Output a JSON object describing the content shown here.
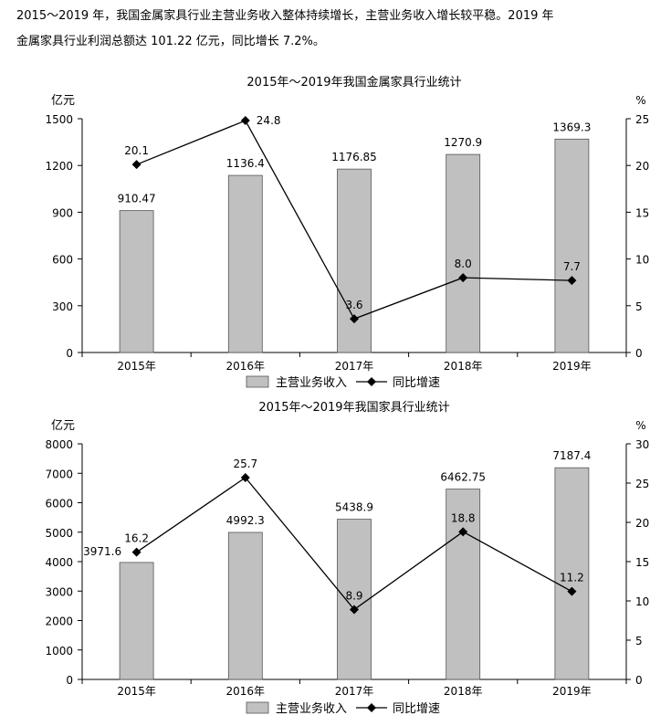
{
  "intro": {
    "line1": "2015～2019 年，我国金属家具行业主营业务收入整体持续增长，主营业务收入增长较平稳。2019 年",
    "line2": "金属家具行业利润总额达 101.22 亿元，同比增长 7.2%。"
  },
  "chart_data": [
    {
      "type": "bar",
      "title": "2015年～2019年我国金属家具行业统计",
      "categories": [
        "2015年",
        "2016年",
        "2017年",
        "2018年",
        "2019年"
      ],
      "ylabel": "亿元",
      "y2label": "%",
      "ylim": [
        0,
        1500
      ],
      "yticks": [
        0,
        300,
        600,
        900,
        1200,
        1500
      ],
      "y2lim": [
        0,
        25
      ],
      "y2ticks": [
        0,
        5,
        10,
        15,
        20,
        25
      ],
      "series": [
        {
          "name": "主营业务收入",
          "type": "bar",
          "axis": "left",
          "color": "#c0c0c0",
          "values": [
            910.47,
            1136.4,
            1176.85,
            1270.9,
            1369.3
          ],
          "labels": [
            "910.47",
            "1136.4",
            "1176.85",
            "1270.9",
            "1369.3"
          ]
        },
        {
          "name": "同比增速",
          "type": "line",
          "axis": "right",
          "color": "#000000",
          "values": [
            20.1,
            24.8,
            3.6,
            8.0,
            7.7
          ],
          "labels": [
            "20.1",
            "24.8",
            "3.6",
            "8.0",
            "7.7"
          ]
        }
      ],
      "legend": "bottom-center",
      "grid": false
    },
    {
      "type": "bar",
      "title": "2015年～2019年我国家具行业统计",
      "categories": [
        "2015年",
        "2016年",
        "2017年",
        "2018年",
        "2019年"
      ],
      "ylabel": "亿元",
      "y2label": "%",
      "ylim": [
        0,
        8000
      ],
      "yticks": [
        0,
        1000,
        2000,
        3000,
        4000,
        5000,
        6000,
        7000,
        8000
      ],
      "y2lim": [
        0,
        30
      ],
      "y2ticks": [
        0,
        5,
        10,
        15,
        20,
        25,
        30
      ],
      "series": [
        {
          "name": "主营业务收入",
          "type": "bar",
          "axis": "left",
          "color": "#c0c0c0",
          "values": [
            3971.6,
            4992.3,
            5438.9,
            6462.75,
            7187.4
          ],
          "labels": [
            "3971.6",
            "4992.3",
            "5438.9",
            "6462.75",
            "7187.4"
          ]
        },
        {
          "name": "同比增速",
          "type": "line",
          "axis": "right",
          "color": "#000000",
          "values": [
            16.2,
            25.7,
            8.9,
            18.8,
            11.2
          ],
          "labels": [
            "16.2",
            "25.7",
            "8.9",
            "18.8",
            "11.2"
          ]
        }
      ],
      "legend": "bottom-center",
      "grid": false
    }
  ]
}
